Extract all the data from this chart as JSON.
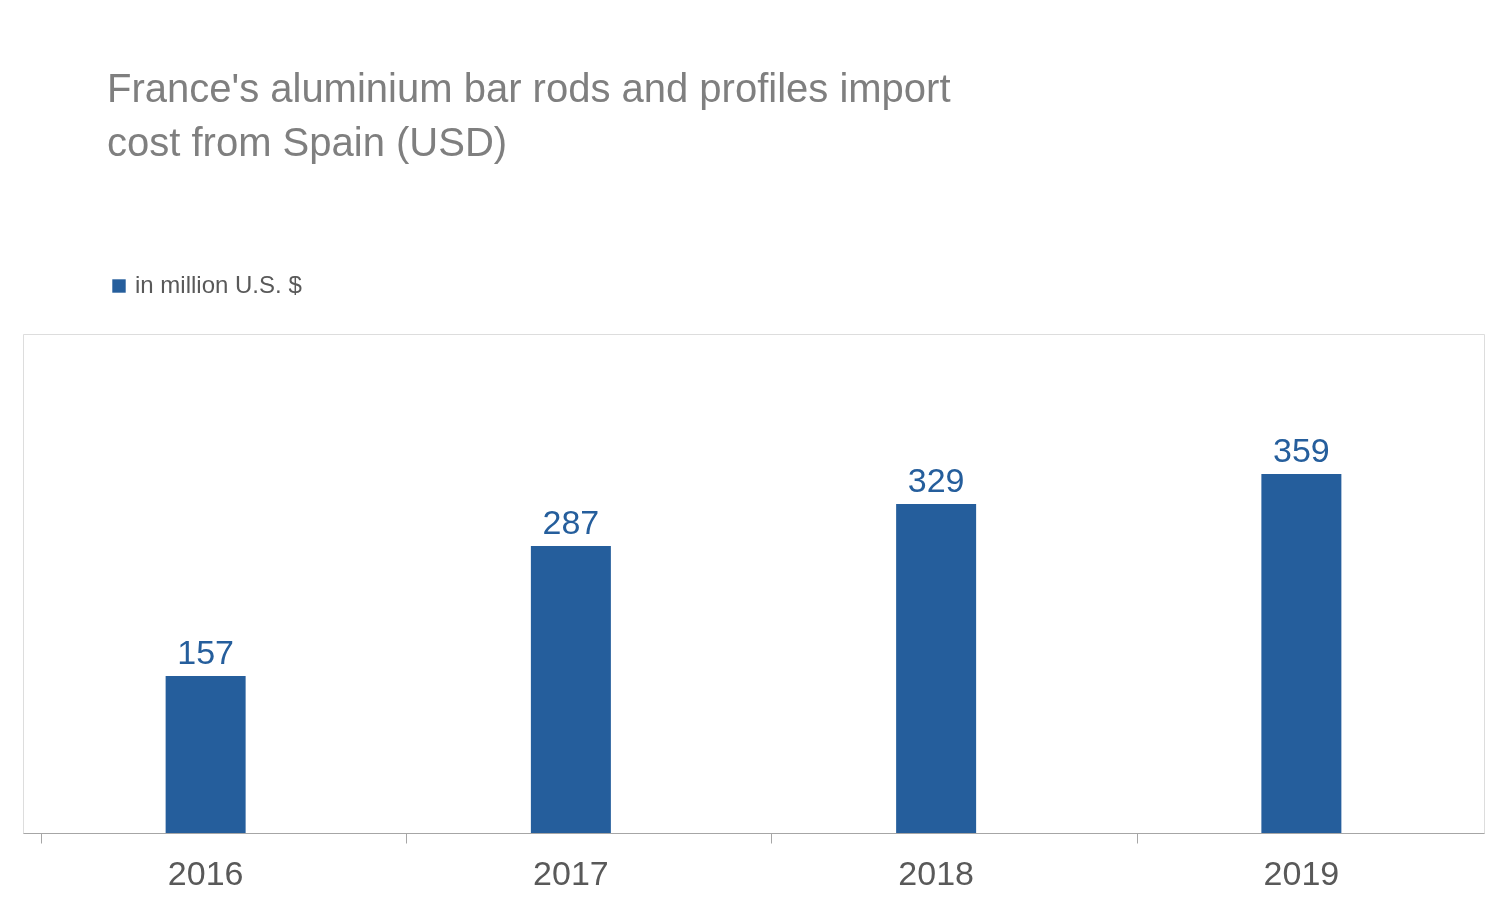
{
  "chart_data": {
    "type": "bar",
    "title": "France's aluminium bar rods and profiles import cost from Spain (USD)",
    "categories": [
      "2016",
      "2017",
      "2018",
      "2019"
    ],
    "series": [
      {
        "name": "in million U.S. $",
        "color": "#255e9c",
        "values": [
          157,
          287,
          329,
          359
        ]
      }
    ],
    "data_labels": true,
    "legend": "top left",
    "grid": false,
    "tick_labels": "x"
  }
}
